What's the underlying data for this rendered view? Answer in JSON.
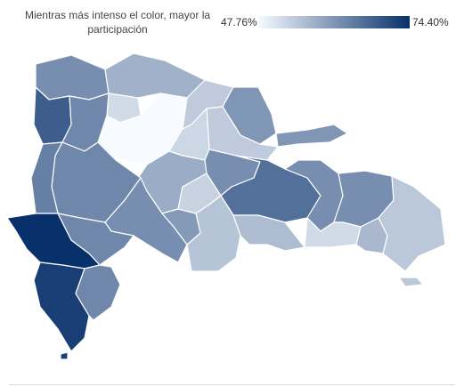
{
  "legend": {
    "title": "Mientras más intenso el color, mayor la participación",
    "min_label": "47.76%",
    "max_label": "74.40%",
    "min_value": 47.76,
    "max_value": 74.4,
    "color_low": "#f7fbff",
    "color_high": "#08306b"
  },
  "map": {
    "regions": [
      {
        "id": "nw-coast",
        "value": 62.0
      },
      {
        "id": "north-coast",
        "value": 57.5
      },
      {
        "id": "north-center",
        "value": 52.0
      },
      {
        "id": "santiago",
        "value": 47.76
      },
      {
        "id": "nw-dark",
        "value": 68.5
      },
      {
        "id": "nw-mid",
        "value": 63.0
      },
      {
        "id": "samana",
        "value": 61.0
      },
      {
        "id": "ne-light",
        "value": 54.0
      },
      {
        "id": "center-light",
        "value": 52.5
      },
      {
        "id": "center-mid",
        "value": 58.0
      },
      {
        "id": "west-1",
        "value": 63.0
      },
      {
        "id": "west-2",
        "value": 64.0
      },
      {
        "id": "center-blue",
        "value": 62.0
      },
      {
        "id": "center-light-2",
        "value": 53.0
      },
      {
        "id": "mid-blue",
        "value": 66.0
      },
      {
        "id": "east-light",
        "value": 52.0
      },
      {
        "id": "east-blue",
        "value": 62.0
      },
      {
        "id": "far-east",
        "value": 54.5
      },
      {
        "id": "southwest-dark",
        "value": 74.4
      },
      {
        "id": "south-dark",
        "value": 72.5
      },
      {
        "id": "south-blue",
        "value": 63.0
      },
      {
        "id": "south-mid",
        "value": 60.5
      },
      {
        "id": "south-light",
        "value": 55.0
      },
      {
        "id": "capital",
        "value": 56.0
      },
      {
        "id": "se-light",
        "value": 56.5
      }
    ]
  }
}
